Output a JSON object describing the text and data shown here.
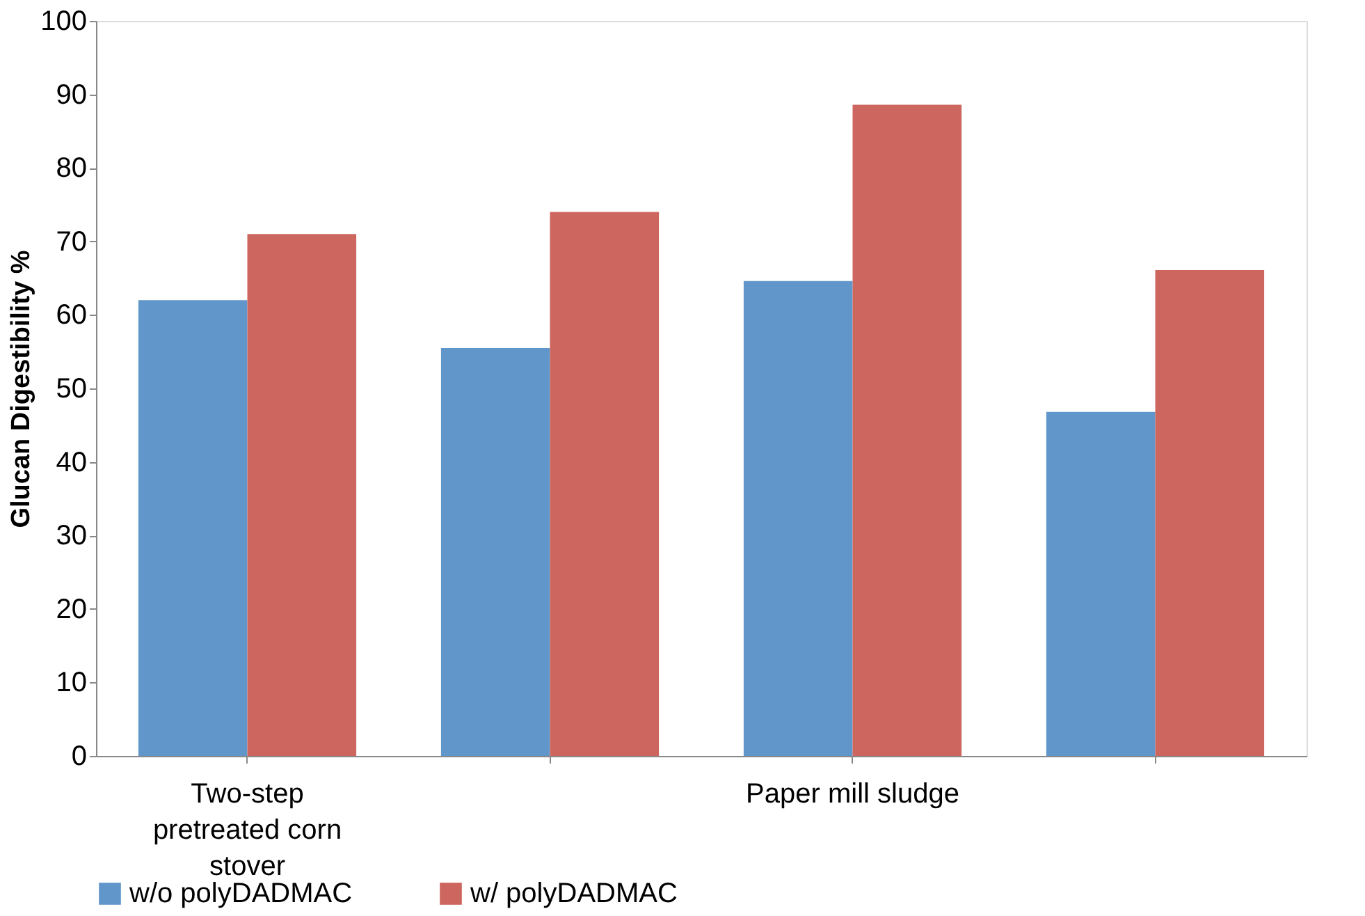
{
  "chart_data": {
    "type": "bar",
    "ylabel": "Glucan Digestibility %",
    "categories": [
      "Two-step pretreated corn stover",
      null,
      "Paper mill sludge",
      null
    ],
    "series": [
      {
        "name": "w/o polyDADMAC",
        "color": "#6196ca",
        "values": [
          62,
          55.5,
          64.6,
          46.8
        ]
      },
      {
        "name": "w/ polyDADMAC",
        "color": "#cd665f",
        "values": [
          71,
          74,
          88.6,
          66.1
        ]
      }
    ],
    "ylim": [
      0,
      100
    ],
    "yticks": [
      0,
      10,
      20,
      30,
      40,
      50,
      60,
      70,
      80,
      90,
      100
    ],
    "grid": false,
    "legend": "bottom"
  }
}
